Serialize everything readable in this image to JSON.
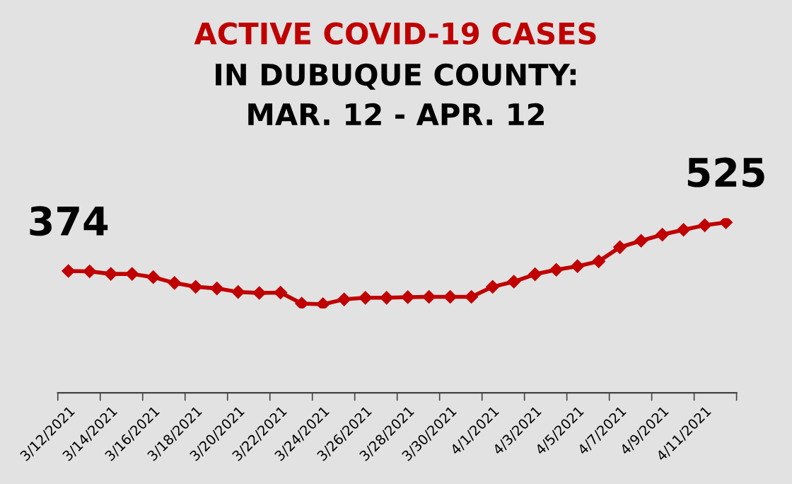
{
  "chart_data": {
    "type": "line",
    "title": "ACTIVE COVID-19 CASES",
    "subtitle": "IN DUBUQUE COUNTY:\nMAR. 12 - APR. 12",
    "categories": [
      "3/12/2021",
      null,
      "3/14/2021",
      null,
      "3/16/2021",
      null,
      "3/18/2021",
      null,
      "3/20/2021",
      null,
      "3/22/2021",
      null,
      "3/24/2021",
      null,
      "3/26/2021",
      null,
      "3/28/2021",
      null,
      "3/30/2021",
      null,
      "4/1/2021",
      null,
      "4/3/2021",
      null,
      "4/5/2021",
      null,
      "4/7/2021",
      null,
      "4/9/2021",
      null,
      "4/11/2021",
      null
    ],
    "series": [
      {
        "color": "#c00000",
        "values": [
          374,
          373,
          365,
          365,
          355,
          337,
          325,
          320,
          309,
          306,
          307,
          273,
          271,
          286,
          291,
          291,
          293,
          294,
          294,
          294,
          325,
          341,
          364,
          378,
          389,
          404,
          448,
          468,
          487,
          502,
          516,
          525
        ],
        "value_labels": [
          "374",
          null,
          null,
          null,
          null,
          null,
          null,
          null,
          null,
          null,
          null,
          null,
          null,
          null,
          null,
          null,
          null,
          null,
          null,
          null,
          null,
          null,
          null,
          null,
          null,
          null,
          null,
          null,
          null,
          null,
          null,
          "525"
        ]
      }
    ],
    "tick_labels": "x",
    "grid": false,
    "legend": false,
    "marker": "diamond",
    "line_style": "solid"
  }
}
